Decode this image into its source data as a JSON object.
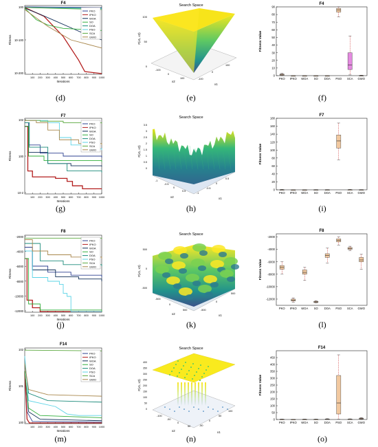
{
  "algorithms": [
    "PKO",
    "IPKO",
    "WOA",
    "SO",
    "DOA",
    "PSO",
    "SCA",
    "GWO"
  ],
  "colors": {
    "PKO": "#2b3f8f",
    "IPKO": "#b31d1d",
    "WOA": "#0b2b55",
    "SO": "#2fae3a",
    "DOA": "#1a8a7a",
    "PSO": "#5ad3e6",
    "SCA": "#5aa83d",
    "GWO": "#a8864a",
    "box_fill": "#f2c9a0",
    "box_fill_f4_sca": "#e48ae0",
    "median": "#d93a3a",
    "whisker": "#cc2222"
  },
  "common": {
    "conv_ylabel": "Fitness",
    "conv_xlabel": "Iterations",
    "conv_xticks": [
      "100",
      "200",
      "300",
      "400",
      "500",
      "600",
      "700",
      "800",
      "900",
      "1000"
    ],
    "box_ylabel": "Fitness Value",
    "surf_title": "Search Space",
    "surf_zlabel": "F(x1, x2)",
    "surf_x1": "x1",
    "surf_x2": "x2"
  },
  "captions": [
    "(d)",
    "(e)",
    "(f)",
    "(g)",
    "(h)",
    "(i)",
    "(j)",
    "(k)",
    "(l)",
    "(m)",
    "(n)",
    "(o)"
  ],
  "chart_data": [
    {
      "type": "line",
      "id": "conv-f4",
      "title": "F4",
      "yscale": "log",
      "yticks": [
        "10^0",
        "10^-100",
        "10^-200"
      ],
      "series": [
        {
          "name": "PKO",
          "note_shape": "flat"
        },
        {
          "name": "IPKO",
          "note_shape": "drop"
        },
        {
          "name": "WOA"
        },
        {
          "name": "SO"
        },
        {
          "name": "DOA"
        },
        {
          "name": "PSO"
        },
        {
          "name": "SCA"
        },
        {
          "name": "GWO"
        }
      ]
    },
    {
      "type": "surface",
      "id": "surf-f4",
      "title": "Search Space",
      "zticks": [
        "0",
        "50",
        "100"
      ],
      "x1ticks": [
        "-100",
        "0",
        "100"
      ],
      "x2ticks": [
        "-100",
        "0",
        "100"
      ]
    },
    {
      "type": "box",
      "id": "box-f4",
      "title": "F4",
      "ylim": [
        0,
        90
      ],
      "yticks": [
        "0",
        "10",
        "20",
        "30",
        "40",
        "50",
        "60",
        "70",
        "80",
        "90"
      ],
      "boxes": [
        {
          "name": "PKO",
          "q1": 0.5,
          "median": 1.2,
          "q3": 2,
          "min": 0,
          "max": 3
        },
        {
          "name": "IPKO",
          "q1": 0,
          "median": 0,
          "q3": 0,
          "min": 0,
          "max": 0
        },
        {
          "name": "WOA",
          "q1": 0,
          "median": 0,
          "q3": 0,
          "min": 0,
          "max": 0
        },
        {
          "name": "SO",
          "q1": 0,
          "median": 0,
          "q3": 0,
          "min": 0,
          "max": 0
        },
        {
          "name": "DOA",
          "q1": 0,
          "median": 0,
          "q3": 0,
          "min": 0,
          "max": 0
        },
        {
          "name": "PSO",
          "q1": 83,
          "median": 86,
          "q3": 88,
          "min": 77,
          "max": 90
        },
        {
          "name": "SCA",
          "q1": 8,
          "median": 14,
          "q3": 30,
          "min": 1,
          "max": 52
        },
        {
          "name": "GWO",
          "q1": 0,
          "median": 0,
          "q3": 0.3,
          "min": 0,
          "max": 0.6
        }
      ]
    },
    {
      "type": "line",
      "id": "conv-f7",
      "title": "F7",
      "yscale": "log",
      "yticks": [
        "10^2",
        "10^0",
        "10^-2"
      ],
      "series": [
        {
          "name": "PKO"
        },
        {
          "name": "IPKO"
        },
        {
          "name": "WOA"
        },
        {
          "name": "SO"
        },
        {
          "name": "DOA"
        },
        {
          "name": "PSO"
        },
        {
          "name": "SCA"
        },
        {
          "name": "GWO"
        }
      ]
    },
    {
      "type": "surface",
      "id": "surf-f7",
      "title": "Search Space",
      "zticks": [
        "0",
        "0.5",
        "1",
        "1.5",
        "2",
        "2.5",
        "3",
        "3.5"
      ],
      "x1ticks": [
        "-1",
        "-0.5",
        "0",
        "0.5"
      ],
      "x2ticks": [
        "-1",
        "-0.5",
        "0",
        "0.5"
      ]
    },
    {
      "type": "box",
      "id": "box-f7",
      "title": "F7",
      "ylim": [
        0,
        180
      ],
      "yticks": [
        "0",
        "20",
        "40",
        "60",
        "80",
        "100",
        "120",
        "140",
        "160",
        "180"
      ],
      "boxes": [
        {
          "name": "PKO",
          "q1": 0,
          "median": 0,
          "q3": 0.5,
          "min": 0,
          "max": 1
        },
        {
          "name": "IPKO",
          "q1": 0,
          "median": 0,
          "q3": 0,
          "min": 0,
          "max": 0
        },
        {
          "name": "WOA",
          "q1": 0,
          "median": 0,
          "q3": 0,
          "min": 0,
          "max": 0
        },
        {
          "name": "SO",
          "q1": 0,
          "median": 0,
          "q3": 0.3,
          "min": 0,
          "max": 0.6
        },
        {
          "name": "DOA",
          "q1": 0,
          "median": 0,
          "q3": 0.3,
          "min": 0,
          "max": 0.6
        },
        {
          "name": "PSO",
          "q1": 105,
          "median": 123,
          "q3": 138,
          "min": 75,
          "max": 168
        },
        {
          "name": "SCA",
          "q1": 0,
          "median": 0.2,
          "q3": 0.5,
          "min": 0,
          "max": 1
        },
        {
          "name": "GWO",
          "q1": 0,
          "median": 0,
          "q3": 0.3,
          "min": 0,
          "max": 0.6
        }
      ]
    },
    {
      "type": "line",
      "id": "conv-f8",
      "title": "F8",
      "yscale": "linear",
      "yticks": [
        "-2000",
        "-4000",
        "-6000",
        "-8000",
        "-10000",
        "-12000"
      ],
      "series": [
        {
          "name": "PKO",
          "final": -7800
        },
        {
          "name": "IPKO",
          "final": -12500
        },
        {
          "name": "WOA",
          "final": -8300
        },
        {
          "name": "SO",
          "final": -12500
        },
        {
          "name": "DOA",
          "final": -6500
        },
        {
          "name": "PSO",
          "final": -12500
        },
        {
          "name": "SCA",
          "final": -2600
        },
        {
          "name": "GWO",
          "final": -5600
        }
      ]
    },
    {
      "type": "surface",
      "id": "surf-f8",
      "title": "Search Space",
      "zticks": [
        "-500",
        "0",
        "500"
      ],
      "x1ticks": [
        "-500",
        "0",
        "500"
      ],
      "x2ticks": [
        "-500",
        "0",
        "500"
      ]
    },
    {
      "type": "box",
      "id": "box-f8",
      "ylim": [
        -13000,
        -1500
      ],
      "title": "F8",
      "yticks": [
        "-2000",
        "-4000",
        "-6000",
        "-8000",
        "-10000",
        "-12000"
      ],
      "boxes": [
        {
          "name": "PKO",
          "q1": -7200,
          "median": -6900,
          "q3": -6600,
          "min": -8000,
          "max": -6000
        },
        {
          "name": "IPKO",
          "q1": -12300,
          "median": -12200,
          "q3": -12000,
          "min": -12500,
          "max": -11800
        },
        {
          "name": "WOA",
          "q1": -8000,
          "median": -7700,
          "q3": -7300,
          "min": -9000,
          "max": -6900
        },
        {
          "name": "SO",
          "q1": -12550,
          "median": -12450,
          "q3": -12350,
          "min": -12600,
          "max": -12250
        },
        {
          "name": "DOA",
          "q1": -5300,
          "median": -5000,
          "q3": -4700,
          "min": -6200,
          "max": -3800
        },
        {
          "name": "PSO",
          "q1": -2800,
          "median": -2550,
          "q3": -2300,
          "min": -3300,
          "max": -2000
        },
        {
          "name": "SCA",
          "q1": -4000,
          "median": -3850,
          "q3": -3700,
          "min": -4200,
          "max": -3500
        },
        {
          "name": "GWO",
          "q1": -6000,
          "median": -5700,
          "q3": -5300,
          "min": -7200,
          "max": -4800
        }
      ]
    },
    {
      "type": "line",
      "id": "conv-f14",
      "title": "F14",
      "yscale": "log",
      "yticks": [
        "10^2",
        "10^1",
        "10^0"
      ],
      "series": [
        {
          "name": "PKO"
        },
        {
          "name": "IPKO"
        },
        {
          "name": "WOA"
        },
        {
          "name": "SO"
        },
        {
          "name": "DOA"
        },
        {
          "name": "PSO"
        },
        {
          "name": "SCA"
        },
        {
          "name": "GWO"
        }
      ]
    },
    {
      "type": "surface",
      "id": "surf-f14",
      "title": "Search Space",
      "zticks": [
        "0",
        "50",
        "100",
        "150",
        "200",
        "250",
        "300",
        "350",
        "400"
      ],
      "x1ticks": [
        "-50",
        "0",
        "50",
        "100"
      ],
      "x2ticks": [
        "-100",
        "-50",
        "0",
        "50"
      ]
    },
    {
      "type": "box",
      "id": "box-f14",
      "title": "F14",
      "ylim": [
        0,
        500
      ],
      "yticks": [
        "0",
        "50",
        "100",
        "150",
        "200",
        "250",
        "300",
        "350",
        "400",
        "450"
      ],
      "boxes": [
        {
          "name": "PKO",
          "q1": 0,
          "median": 1,
          "q3": 2,
          "min": 0,
          "max": 3
        },
        {
          "name": "IPKO",
          "q1": 0,
          "median": 0.5,
          "q3": 1,
          "min": 0,
          "max": 1.5
        },
        {
          "name": "WOA",
          "q1": 0,
          "median": 1,
          "q3": 2,
          "min": 0,
          "max": 3
        },
        {
          "name": "SO",
          "q1": 0,
          "median": 1,
          "q3": 2,
          "min": 0,
          "max": 3
        },
        {
          "name": "DOA",
          "q1": 0,
          "median": 2,
          "q3": 4,
          "min": 0,
          "max": 6
        },
        {
          "name": "PSO",
          "q1": 40,
          "median": 120,
          "q3": 320,
          "min": 2,
          "max": 470
        },
        {
          "name": "SCA",
          "q1": 1,
          "median": 2,
          "q3": 3,
          "min": 0,
          "max": 5
        },
        {
          "name": "GWO",
          "q1": 3,
          "median": 6,
          "q3": 10,
          "min": 0,
          "max": 14
        }
      ]
    }
  ]
}
